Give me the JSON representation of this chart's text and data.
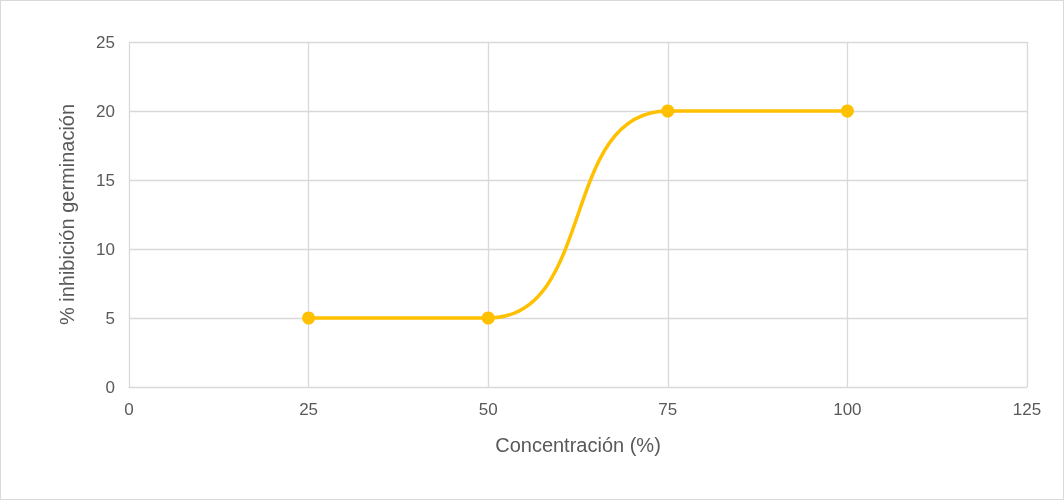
{
  "chart_data": {
    "type": "line",
    "xlabel": "Concentración (%)",
    "ylabel": "% inhibición germinación",
    "x": [
      25,
      50,
      75,
      100
    ],
    "series": [
      {
        "color": "#ffc000",
        "values": [
          5,
          5,
          20,
          20
        ]
      }
    ],
    "xlim": [
      0,
      125
    ],
    "xticks": [
      0,
      25,
      50,
      75,
      100,
      125
    ],
    "ylim": [
      0,
      25
    ],
    "yticks": [
      0,
      5,
      10,
      15,
      20,
      25
    ],
    "grid": true,
    "marker": "circle",
    "line_style": "solid"
  }
}
